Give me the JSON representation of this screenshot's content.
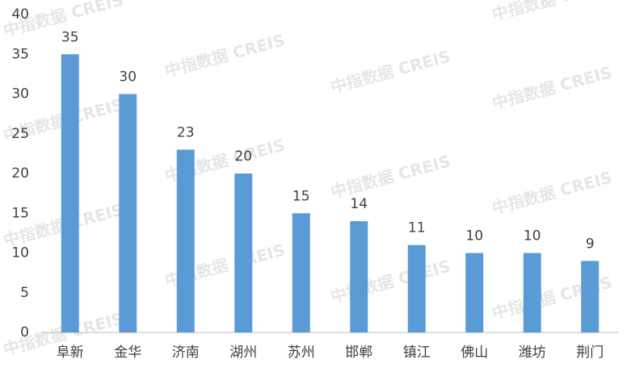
{
  "chart_data": {
    "type": "bar",
    "watermark": "中指数据 CREIS",
    "categories": [
      "阜新",
      "金华",
      "济南",
      "湖州",
      "苏州",
      "邯郸",
      "镇江",
      "佛山",
      "潍坊",
      "荆门"
    ],
    "values": [
      35,
      30,
      23,
      20,
      15,
      14,
      11,
      10,
      10,
      9
    ],
    "color": "#5b9bd5",
    "ylim": [
      0,
      40
    ],
    "yticks": [
      0,
      5,
      10,
      15,
      20,
      25,
      30,
      35,
      40
    ],
    "grid": false
  }
}
